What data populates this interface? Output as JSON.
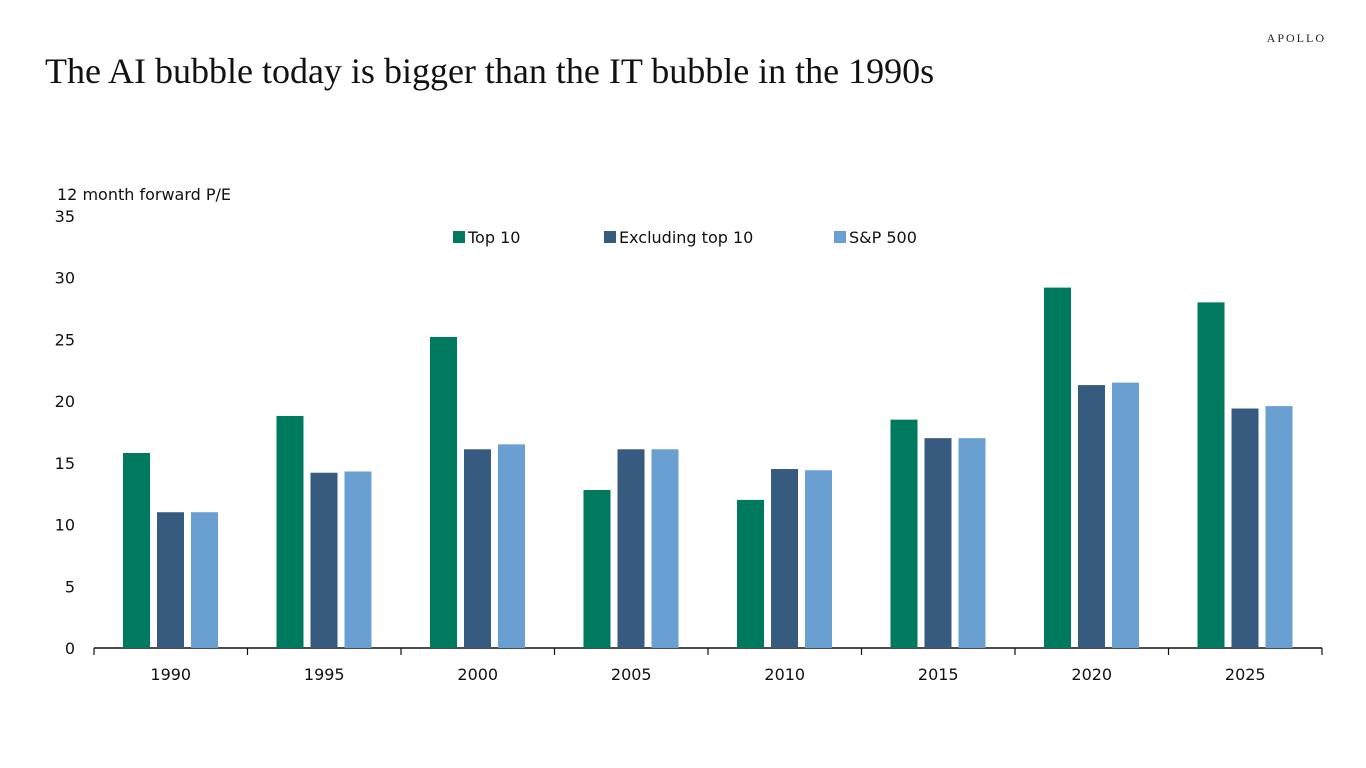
{
  "title": "The AI bubble today is bigger than the IT bubble in the 1990s",
  "logo": "APOLLO",
  "chart_data": {
    "type": "bar",
    "title": "The AI bubble today is bigger than the IT bubble in the 1990s",
    "ylabel": "12 month forward P/E",
    "xlabel": "",
    "ylim": [
      0,
      35
    ],
    "yticks": [
      0,
      5,
      10,
      15,
      20,
      25,
      30,
      35
    ],
    "categories": [
      "1990",
      "1995",
      "2000",
      "2005",
      "2010",
      "2015",
      "2020",
      "2025"
    ],
    "legend_position": "top-center",
    "grid": false,
    "series": [
      {
        "name": "Top 10",
        "color": "#007A5E",
        "values": [
          15.8,
          18.8,
          25.2,
          12.8,
          12.0,
          18.5,
          29.2,
          28.0
        ]
      },
      {
        "name": "Excluding top 10",
        "color": "#375A7F",
        "values": [
          11.0,
          14.2,
          16.1,
          16.1,
          14.5,
          17.0,
          21.3,
          19.4
        ]
      },
      {
        "name": "S&P 500",
        "color": "#6A9FD2",
        "values": [
          11.0,
          14.3,
          16.5,
          16.1,
          14.4,
          17.0,
          21.5,
          19.6
        ]
      }
    ]
  }
}
